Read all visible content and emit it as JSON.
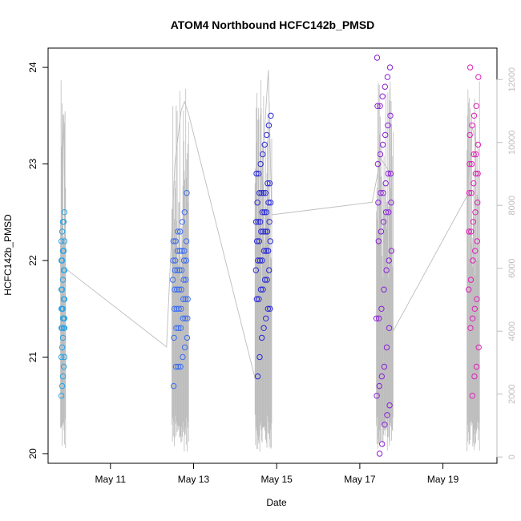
{
  "chart_data": {
    "type": "scatter",
    "title": "ATOM4 Northbound HCFC142b_PMSD",
    "xlabel": "Date",
    "ylabel": "HCFC142b_PMSD",
    "x_ticks": [
      "May 11",
      "May 13",
      "May 15",
      "May 17",
      "May 19"
    ],
    "x_tick_days": [
      11,
      13,
      15,
      17,
      19
    ],
    "xlim_days": [
      9.5,
      20.3
    ],
    "ylim": [
      19.9,
      24.2
    ],
    "y_ticks": [
      "20",
      "21",
      "22",
      "23",
      "24"
    ],
    "y_tick_values": [
      20,
      21,
      22,
      23,
      24
    ],
    "secondary_axis": {
      "ticks": [
        "0",
        "2000",
        "4000",
        "6000",
        "8000",
        "10000",
        "12000"
      ],
      "values": [
        0,
        2000,
        4000,
        6000,
        8000,
        10000,
        12000
      ],
      "range": [
        -200,
        13000
      ],
      "color": "#bdbdbd"
    },
    "grid": false,
    "series": [
      {
        "color": "#29a3e6",
        "x_range_days": [
          9.82,
          9.91
        ],
        "y": [
          20.6,
          20.7,
          20.8,
          20.9,
          21.0,
          21.0,
          21.1,
          21.2,
          21.3,
          21.3,
          21.3,
          21.3,
          21.4,
          21.4,
          21.4,
          21.5,
          21.5,
          21.5,
          21.6,
          21.6,
          21.7,
          21.7,
          21.8,
          21.9,
          21.9,
          22.0,
          22.0,
          22.1,
          22.1,
          22.2,
          22.2,
          22.3,
          22.4,
          22.4,
          22.5
        ]
      },
      {
        "color": "#3d6ef0",
        "x_range_days": [
          12.5,
          12.86
        ],
        "y": [
          20.7,
          20.9,
          20.9,
          20.9,
          21.0,
          21.1,
          21.2,
          21.2,
          21.3,
          21.3,
          21.3,
          21.4,
          21.4,
          21.4,
          21.5,
          21.5,
          21.5,
          21.5,
          21.6,
          21.6,
          21.6,
          21.7,
          21.7,
          21.7,
          21.7,
          21.8,
          21.8,
          21.8,
          21.9,
          21.9,
          21.9,
          21.9,
          22.0,
          22.0,
          22.0,
          22.0,
          22.1,
          22.1,
          22.1,
          22.1,
          22.2,
          22.2,
          22.2,
          22.3,
          22.3,
          22.4,
          22.5,
          22.7
        ]
      },
      {
        "color": "#2a2ad6",
        "x_range_days": [
          14.5,
          14.86
        ],
        "y": [
          20.8,
          21.0,
          21.2,
          21.3,
          21.4,
          21.5,
          21.5,
          21.6,
          21.6,
          21.7,
          21.7,
          21.8,
          21.8,
          21.9,
          21.9,
          22.0,
          22.0,
          22.0,
          22.1,
          22.1,
          22.1,
          22.2,
          22.2,
          22.2,
          22.3,
          22.3,
          22.3,
          22.3,
          22.4,
          22.4,
          22.4,
          22.4,
          22.5,
          22.5,
          22.5,
          22.6,
          22.6,
          22.6,
          22.7,
          22.7,
          22.7,
          22.7,
          22.8,
          22.8,
          22.9,
          22.9,
          23.0,
          23.1,
          23.2,
          23.3,
          23.4,
          23.5
        ]
      },
      {
        "color": "#8a22d6",
        "x_range_days": [
          17.4,
          17.76
        ],
        "y": [
          20.0,
          20.1,
          20.3,
          20.4,
          20.5,
          20.6,
          20.7,
          20.8,
          20.9,
          21.1,
          21.3,
          21.4,
          21.4,
          21.5,
          21.7,
          21.9,
          22.0,
          22.1,
          22.2,
          22.3,
          22.4,
          22.5,
          22.5,
          22.6,
          22.6,
          22.7,
          22.7,
          22.8,
          22.9,
          22.9,
          23.0,
          23.1,
          23.2,
          23.3,
          23.4,
          23.5,
          23.6,
          23.6,
          23.7,
          23.8,
          23.9,
          24.0,
          24.1
        ]
      },
      {
        "color": "#e020b8",
        "x_range_days": [
          19.62,
          19.86
        ],
        "y": [
          20.6,
          20.8,
          20.9,
          21.1,
          21.3,
          21.4,
          21.5,
          21.6,
          21.7,
          21.8,
          22.0,
          22.1,
          22.2,
          22.3,
          22.3,
          22.4,
          22.5,
          22.6,
          22.7,
          22.7,
          22.8,
          22.9,
          22.9,
          23.0,
          23.0,
          23.1,
          23.1,
          23.2,
          23.3,
          23.4,
          23.5,
          23.6,
          23.9,
          24.0
        ]
      }
    ],
    "secondary_line": {
      "color": "#bdbdbd",
      "points_day_value": [
        [
          9.85,
          2000
        ],
        [
          9.86,
          9800
        ],
        [
          9.88,
          10900
        ],
        [
          9.91,
          6000
        ],
        [
          12.35,
          3500
        ],
        [
          12.55,
          9300
        ],
        [
          12.7,
          11000
        ],
        [
          12.78,
          11300
        ],
        [
          12.88,
          10900
        ],
        [
          14.48,
          2500
        ],
        [
          14.62,
          8500
        ],
        [
          14.8,
          12300
        ],
        [
          14.88,
          7700
        ],
        [
          17.3,
          8100
        ],
        [
          17.5,
          9500
        ],
        [
          17.7,
          9100
        ],
        [
          17.8,
          4000
        ],
        [
          19.58,
          8300
        ],
        [
          19.7,
          10500
        ],
        [
          19.86,
          9700
        ]
      ],
      "spike_clusters_days": [
        [
          9.8,
          9.92
        ],
        [
          12.48,
          12.88
        ],
        [
          14.48,
          14.88
        ],
        [
          17.4,
          17.8
        ],
        [
          19.58,
          19.88
        ]
      ]
    }
  }
}
